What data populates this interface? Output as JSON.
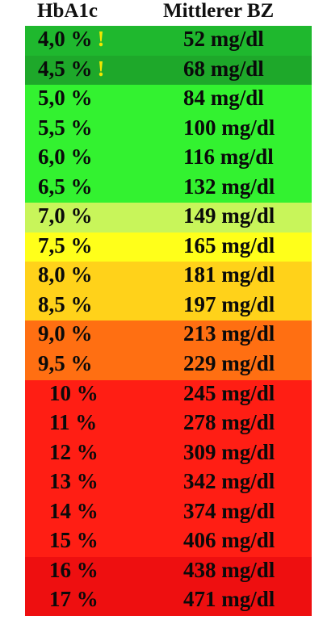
{
  "header": {
    "col1": "HbA1c",
    "col2": "Mittlerer BZ"
  },
  "rows": [
    {
      "a1c": "4,0 %",
      "bz": "52 mg/dl",
      "warn": "!",
      "color": "#1fb82e"
    },
    {
      "a1c": "4,5 %",
      "bz": "68 mg/dl",
      "warn": "!",
      "color": "#1ea82a"
    },
    {
      "a1c": "5,0 %",
      "bz": "84 mg/dl",
      "warn": "",
      "color": "#33f230"
    },
    {
      "a1c": "5,5 %",
      "bz": "100 mg/dl",
      "warn": "",
      "color": "#33f230"
    },
    {
      "a1c": "6,0 %",
      "bz": "116 mg/dl",
      "warn": "",
      "color": "#33f230"
    },
    {
      "a1c": "6,5 %",
      "bz": "132 mg/dl",
      "warn": "",
      "color": "#33f230"
    },
    {
      "a1c": "7,0 %",
      "bz": "149 mg/dl",
      "warn": "",
      "color": "#c8f55a"
    },
    {
      "a1c": "7,5 %",
      "bz": "165 mg/dl",
      "warn": "",
      "color": "#ffff1a"
    },
    {
      "a1c": "8,0 %",
      "bz": "181 mg/dl",
      "warn": "",
      "color": "#ffd21a"
    },
    {
      "a1c": "8,5 %",
      "bz": "197 mg/dl",
      "warn": "",
      "color": "#ffd21a"
    },
    {
      "a1c": "9,0 %",
      "bz": "213 mg/dl",
      "warn": "",
      "color": "#ff6f12"
    },
    {
      "a1c": "9,5 %",
      "bz": "229 mg/dl",
      "warn": "",
      "color": "#ff6f12"
    },
    {
      "a1c": "10 %",
      "bz": "245 mg/dl",
      "warn": "",
      "color": "#ff1e14"
    },
    {
      "a1c": "11 %",
      "bz": "278 mg/dl",
      "warn": "",
      "color": "#ff1e14"
    },
    {
      "a1c": "12 %",
      "bz": "309 mg/dl",
      "warn": "",
      "color": "#ff1e14"
    },
    {
      "a1c": "13 %",
      "bz": "342 mg/dl",
      "warn": "",
      "color": "#ff1e14"
    },
    {
      "a1c": "14 %",
      "bz": "374 mg/dl",
      "warn": "",
      "color": "#ff1e14"
    },
    {
      "a1c": "15 %",
      "bz": "406 mg/dl",
      "warn": "",
      "color": "#ff1e14"
    },
    {
      "a1c": "16 %",
      "bz": "438 mg/dl",
      "warn": "",
      "color": "#ee0f10"
    },
    {
      "a1c": "17 %",
      "bz": "471 mg/dl",
      "warn": "",
      "color": "#ee0f10"
    }
  ]
}
